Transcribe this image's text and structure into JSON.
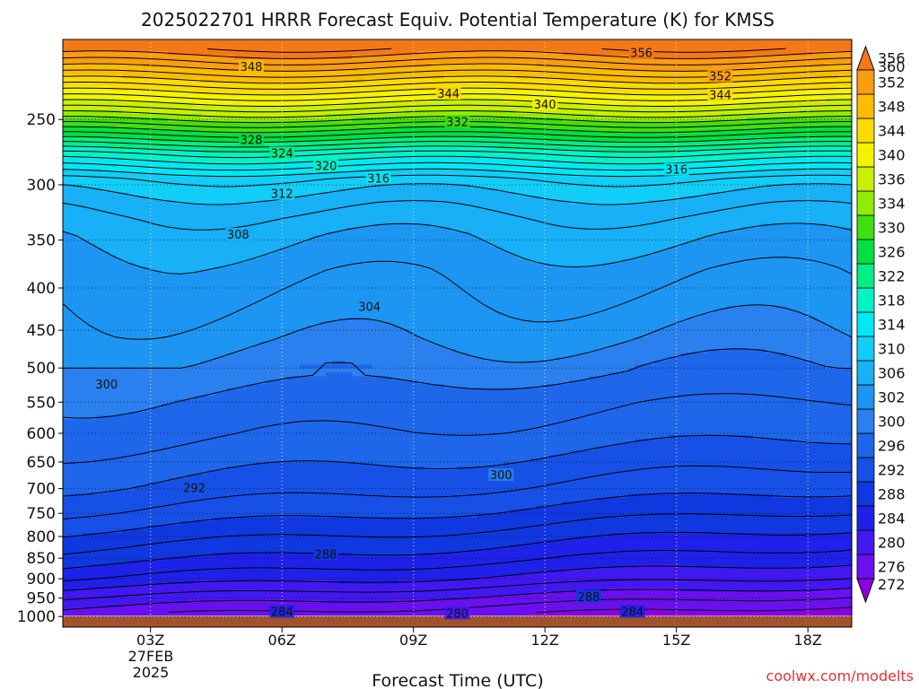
{
  "chart_data": {
    "type": "heatmap",
    "title": "2025022701 HRRR Forecast Equiv. Potential Temperature (K) for KMSS",
    "xlabel": "Forecast Time (UTC)",
    "ylabel": "",
    "watermark": "coolwx.com/modelts",
    "x_ticks": [
      "03Z",
      "06Z",
      "09Z",
      "12Z",
      "15Z",
      "18Z"
    ],
    "x_tick_hours": [
      3,
      6,
      9,
      12,
      15,
      18
    ],
    "x_date_line1": "27FEB",
    "x_date_line2": "2025",
    "xlim": [
      1,
      19
    ],
    "y_ticks": [
      250,
      300,
      350,
      400,
      450,
      500,
      550,
      600,
      650,
      700,
      750,
      800,
      850,
      900,
      950,
      1000
    ],
    "ylim": [
      1030,
      200
    ],
    "y_scale": "log",
    "y_reversed": true,
    "grid": true,
    "colorbar": {
      "levels": [
        272,
        276,
        280,
        284,
        288,
        292,
        296,
        300,
        302,
        306,
        310,
        314,
        318,
        322,
        326,
        330,
        334,
        336,
        340,
        344,
        348,
        352,
        356,
        360
      ],
      "colors": [
        "#8a00e0",
        "#6a10f0",
        "#4218f0",
        "#1e22e8",
        "#1038e0",
        "#1650e6",
        "#1e66ea",
        "#2a80ee",
        "#1c96f2",
        "#18b0f6",
        "#10cef8",
        "#00e8f4",
        "#00f4c8",
        "#00ee86",
        "#00e040",
        "#40e010",
        "#90ec00",
        "#c8f000",
        "#f4f400",
        "#fcdc00",
        "#fcbc00",
        "#fc9c10",
        "#f47818"
      ],
      "placement": "right",
      "extend": "both"
    },
    "profile": {
      "pressure": [
        205,
        250,
        275,
        295,
        300,
        315,
        330,
        345,
        380,
        420,
        460,
        500,
        550,
        600,
        650,
        700,
        750,
        800,
        850,
        900,
        950,
        990
      ],
      "theta_e": [
        358,
        334,
        320,
        312,
        311,
        309,
        307.5,
        306.5,
        305,
        304,
        303,
        301.5,
        300,
        299,
        297.5,
        296,
        294,
        291.5,
        289,
        286,
        282,
        279
      ]
    },
    "contour_labels": [
      {
        "hour": 5.3,
        "p": 216,
        "value": "348"
      },
      {
        "hour": 9.8,
        "p": 233,
        "value": "344"
      },
      {
        "hour": 12.0,
        "p": 240,
        "value": "340"
      },
      {
        "hour": 10.0,
        "p": 252,
        "value": "332"
      },
      {
        "hour": 14.2,
        "p": 208,
        "value": "356"
      },
      {
        "hour": 16.0,
        "p": 222,
        "value": "352"
      },
      {
        "hour": 16.0,
        "p": 234,
        "value": "344"
      },
      {
        "hour": 5.3,
        "p": 265,
        "value": "328"
      },
      {
        "hour": 6.0,
        "p": 275,
        "value": "324"
      },
      {
        "hour": 7.0,
        "p": 285,
        "value": "320"
      },
      {
        "hour": 8.2,
        "p": 295,
        "value": "316"
      },
      {
        "hour": 15.0,
        "p": 288,
        "value": "316"
      },
      {
        "hour": 6.0,
        "p": 308,
        "value": "312"
      },
      {
        "hour": 5.0,
        "p": 345,
        "value": "308"
      },
      {
        "hour": 8.0,
        "p": 422,
        "value": "304"
      },
      {
        "hour": 2.0,
        "p": 524,
        "value": "300"
      },
      {
        "hour": 11.0,
        "p": 675,
        "value": "300"
      },
      {
        "hour": 4.0,
        "p": 700,
        "value": "292"
      },
      {
        "hour": 7.0,
        "p": 842,
        "value": "288"
      },
      {
        "hour": 13.0,
        "p": 948,
        "value": "288"
      },
      {
        "hour": 6.0,
        "p": 988,
        "value": "284"
      },
      {
        "hour": 10.0,
        "p": 993,
        "value": "280"
      },
      {
        "hour": 14.0,
        "p": 988,
        "value": "284"
      }
    ]
  }
}
